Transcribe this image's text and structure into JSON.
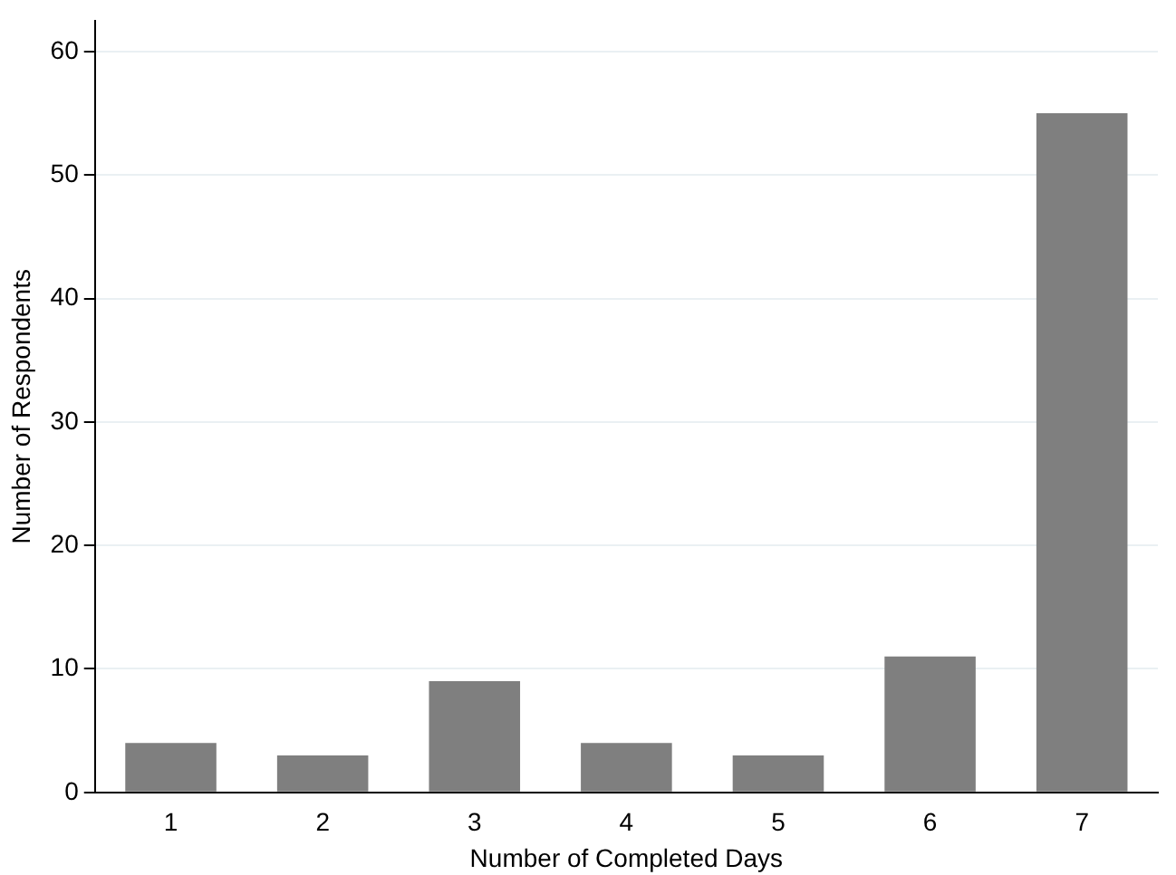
{
  "chart_data": {
    "type": "bar",
    "xlabel": "Number of Completed Days",
    "ylabel": "Number of Respondents",
    "categories": [
      "1",
      "2",
      "3",
      "4",
      "5",
      "6",
      "7"
    ],
    "values": [
      4,
      3,
      9,
      4,
      3,
      11,
      55
    ],
    "color": "#7f7f7f",
    "ylim": [
      0,
      62.5
    ],
    "yticks": [
      0,
      10,
      20,
      30,
      40,
      50,
      60
    ],
    "grid": "y"
  }
}
